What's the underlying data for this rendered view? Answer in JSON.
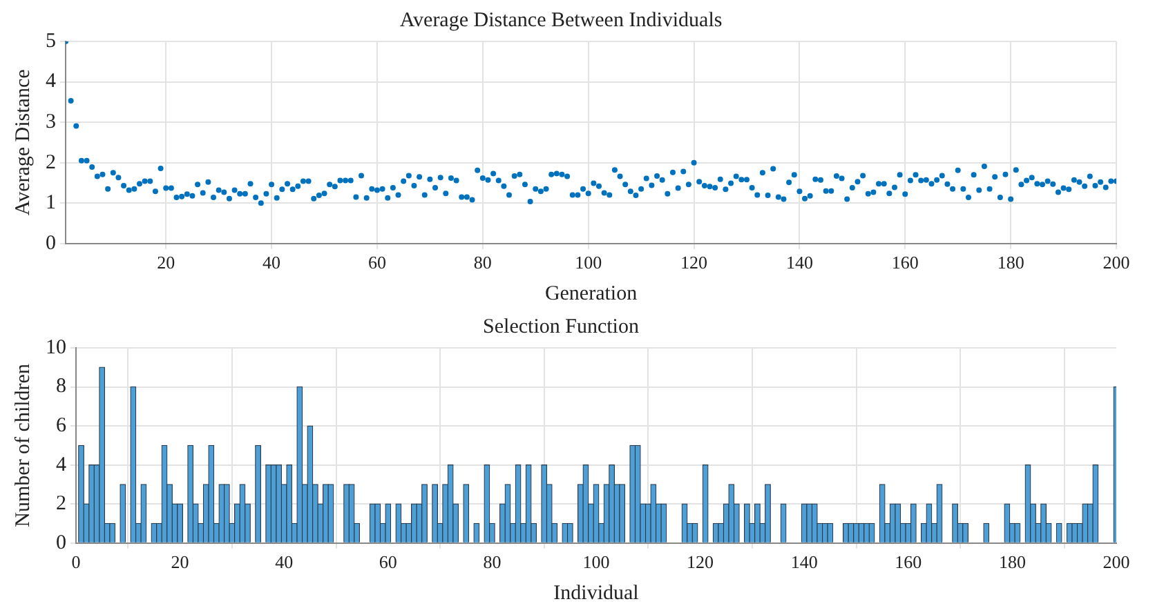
{
  "chart_data": [
    {
      "type": "scatter",
      "title": "Average Distance Between Individuals",
      "xlabel": "Generation",
      "ylabel": "Average Distance",
      "color": "#0072bd",
      "marker": "circle",
      "grid": true,
      "x": [
        1,
        2,
        3,
        4,
        5,
        6,
        7,
        8,
        9,
        10,
        11,
        12,
        13,
        14,
        15,
        16,
        17,
        18,
        19,
        20,
        21,
        22,
        23,
        24,
        25,
        26,
        27,
        28,
        29,
        30,
        31,
        32,
        33,
        34,
        35,
        36,
        37,
        38,
        39,
        40,
        41,
        42,
        43,
        44,
        45,
        46,
        47,
        48,
        49,
        50,
        51,
        52,
        53,
        54,
        55,
        56,
        57,
        58,
        59,
        60,
        61,
        62,
        63,
        64,
        65,
        66,
        67,
        68,
        69,
        70,
        71,
        72,
        73,
        74,
        75,
        76,
        77,
        78,
        79,
        80,
        81,
        82,
        83,
        84,
        85,
        86,
        87,
        88,
        89,
        90,
        91,
        92,
        93,
        94,
        95,
        96,
        97,
        98,
        99,
        100,
        101,
        102,
        103,
        104,
        105,
        106,
        107,
        108,
        109,
        110,
        111,
        112,
        113,
        114,
        115,
        116,
        117,
        118,
        119,
        120,
        121,
        122,
        123,
        124,
        125,
        126,
        127,
        128,
        129,
        130,
        131,
        132,
        133,
        134,
        135,
        136,
        137,
        138,
        139,
        140,
        141,
        142,
        143,
        144,
        145,
        146,
        147,
        148,
        149,
        150,
        151,
        152,
        153,
        154,
        155,
        156,
        157,
        158,
        159,
        160,
        161,
        162,
        163,
        164,
        165,
        166,
        167,
        168,
        169,
        170,
        171,
        172,
        173,
        174,
        175,
        176,
        177,
        178,
        179,
        180,
        181,
        182,
        183,
        184,
        185,
        186,
        187,
        188,
        189,
        190,
        191,
        192,
        193,
        194,
        195,
        196,
        197,
        198,
        199,
        200
      ],
      "values": [
        5.0,
        3.53,
        2.91,
        2.05,
        2.05,
        1.89,
        1.66,
        1.71,
        1.35,
        1.75,
        1.63,
        1.43,
        1.32,
        1.35,
        1.48,
        1.54,
        1.54,
        1.29,
        1.86,
        1.37,
        1.37,
        1.14,
        1.16,
        1.22,
        1.18,
        1.46,
        1.25,
        1.52,
        1.14,
        1.32,
        1.27,
        1.11,
        1.32,
        1.23,
        1.23,
        1.48,
        1.14,
        1.0,
        1.23,
        1.46,
        1.13,
        1.34,
        1.48,
        1.34,
        1.42,
        1.54,
        1.54,
        1.11,
        1.19,
        1.24,
        1.46,
        1.41,
        1.56,
        1.56,
        1.56,
        1.15,
        1.68,
        1.13,
        1.35,
        1.32,
        1.35,
        1.13,
        1.38,
        1.2,
        1.54,
        1.68,
        1.43,
        1.65,
        1.2,
        1.59,
        1.38,
        1.63,
        1.24,
        1.62,
        1.56,
        1.15,
        1.15,
        1.08,
        1.81,
        1.62,
        1.57,
        1.73,
        1.56,
        1.42,
        1.2,
        1.67,
        1.71,
        1.46,
        1.04,
        1.35,
        1.29,
        1.35,
        1.71,
        1.73,
        1.71,
        1.66,
        1.2,
        1.2,
        1.35,
        1.24,
        1.49,
        1.42,
        1.25,
        1.2,
        1.82,
        1.66,
        1.46,
        1.29,
        1.19,
        1.35,
        1.61,
        1.44,
        1.67,
        1.57,
        1.23,
        1.76,
        1.37,
        1.78,
        1.46,
        2.0,
        1.53,
        1.43,
        1.41,
        1.38,
        1.59,
        1.34,
        1.49,
        1.66,
        1.58,
        1.58,
        1.38,
        1.2,
        1.75,
        1.19,
        1.85,
        1.15,
        1.1,
        1.51,
        1.7,
        1.29,
        1.11,
        1.18,
        1.59,
        1.57,
        1.3,
        1.3,
        1.67,
        1.61,
        1.1,
        1.38,
        1.53,
        1.68,
        1.23,
        1.27,
        1.48,
        1.48,
        1.24,
        1.39,
        1.7,
        1.22,
        1.56,
        1.7,
        1.56,
        1.57,
        1.48,
        1.57,
        1.68,
        1.47,
        1.35,
        1.81,
        1.35,
        1.14,
        1.7,
        1.32,
        1.91,
        1.35,
        1.65,
        1.14,
        1.71,
        1.1,
        1.82,
        1.46,
        1.56,
        1.63,
        1.48,
        1.46,
        1.54,
        1.47,
        1.27,
        1.37,
        1.34,
        1.57,
        1.52,
        1.42,
        1.66,
        1.43,
        1.52,
        1.39,
        1.54,
        1.54
      ],
      "xlim": [
        1,
        200
      ],
      "xticks": [
        20,
        40,
        60,
        80,
        100,
        120,
        140,
        160,
        180,
        200
      ],
      "ylim": [
        0,
        5
      ],
      "yticks": [
        0,
        1,
        2,
        3,
        4,
        5
      ]
    },
    {
      "type": "bar",
      "title": "Selection Function",
      "xlabel": "Individual",
      "ylabel": "Number of children",
      "color": "#4d9fd6",
      "grid": true,
      "x": [
        1,
        2,
        3,
        4,
        5,
        6,
        7,
        8,
        9,
        10,
        11,
        12,
        13,
        14,
        15,
        16,
        17,
        18,
        19,
        20,
        21,
        22,
        23,
        24,
        25,
        26,
        27,
        28,
        29,
        30,
        31,
        32,
        33,
        34,
        35,
        36,
        37,
        38,
        39,
        40,
        41,
        42,
        43,
        44,
        45,
        46,
        47,
        48,
        49,
        50,
        51,
        52,
        53,
        54,
        55,
        56,
        57,
        58,
        59,
        60,
        61,
        62,
        63,
        64,
        65,
        66,
        67,
        68,
        69,
        70,
        71,
        72,
        73,
        74,
        75,
        76,
        77,
        78,
        79,
        80,
        81,
        82,
        83,
        84,
        85,
        86,
        87,
        88,
        89,
        90,
        91,
        92,
        93,
        94,
        95,
        96,
        97,
        98,
        99,
        100,
        101,
        102,
        103,
        104,
        105,
        106,
        107,
        108,
        109,
        110,
        111,
        112,
        113,
        114,
        115,
        116,
        117,
        118,
        119,
        120,
        121,
        122,
        123,
        124,
        125,
        126,
        127,
        128,
        129,
        130,
        131,
        132,
        133,
        134,
        135,
        136,
        137,
        138,
        139,
        140,
        141,
        142,
        143,
        144,
        145,
        146,
        147,
        148,
        149,
        150,
        151,
        152,
        153,
        154,
        155,
        156,
        157,
        158,
        159,
        160,
        161,
        162,
        163,
        164,
        165,
        166,
        167,
        168,
        169,
        170,
        171,
        172,
        173,
        174,
        175,
        176,
        177,
        178,
        179,
        180,
        181,
        182,
        183,
        184,
        185,
        186,
        187,
        188,
        189,
        190,
        191,
        192,
        193,
        194,
        195,
        196,
        197,
        198,
        199,
        200
      ],
      "values": [
        5,
        2,
        4,
        4,
        9,
        1,
        1,
        0,
        3,
        0,
        8,
        1,
        3,
        0,
        1,
        1,
        5,
        3,
        2,
        2,
        0,
        5,
        2,
        1,
        3,
        5,
        1,
        3,
        3,
        1,
        2,
        3,
        2,
        0,
        5,
        0,
        4,
        4,
        4,
        3,
        4,
        1,
        8,
        3,
        6,
        3,
        2,
        3,
        3,
        0,
        0,
        3,
        3,
        1,
        0,
        0,
        2,
        2,
        1,
        2,
        0,
        2,
        1,
        1,
        2,
        2,
        3,
        0,
        3,
        1,
        3,
        4,
        2,
        0,
        3,
        0,
        1,
        0,
        4,
        1,
        0,
        2,
        3,
        1,
        4,
        1,
        4,
        1,
        0,
        4,
        3,
        1,
        0,
        1,
        1,
        0,
        3,
        4,
        2,
        3,
        1,
        3,
        4,
        3,
        3,
        0,
        5,
        5,
        2,
        2,
        3,
        2,
        2,
        0,
        0,
        0,
        2,
        1,
        1,
        0,
        4,
        0,
        1,
        1,
        2,
        3,
        2,
        0,
        2,
        1,
        2,
        1,
        3,
        0,
        0,
        2,
        0,
        0,
        0,
        2,
        2,
        2,
        1,
        1,
        1,
        0,
        0,
        1,
        1,
        1,
        1,
        1,
        1,
        0,
        3,
        1,
        2,
        2,
        1,
        1,
        2,
        0,
        1,
        2,
        1,
        3,
        0,
        0,
        2,
        1,
        1,
        0,
        0,
        0,
        1,
        0,
        0,
        0,
        2,
        1,
        1,
        0,
        4,
        2,
        1,
        2,
        1,
        0,
        1,
        0,
        1,
        1,
        1,
        2,
        2,
        4,
        0,
        0,
        0,
        8
      ],
      "xlim": [
        0,
        200
      ],
      "xticks": [
        0,
        20,
        40,
        60,
        80,
        100,
        120,
        140,
        160,
        180,
        200
      ],
      "ylim": [
        0,
        10
      ],
      "yticks": [
        0,
        2,
        4,
        6,
        8,
        10
      ]
    }
  ]
}
